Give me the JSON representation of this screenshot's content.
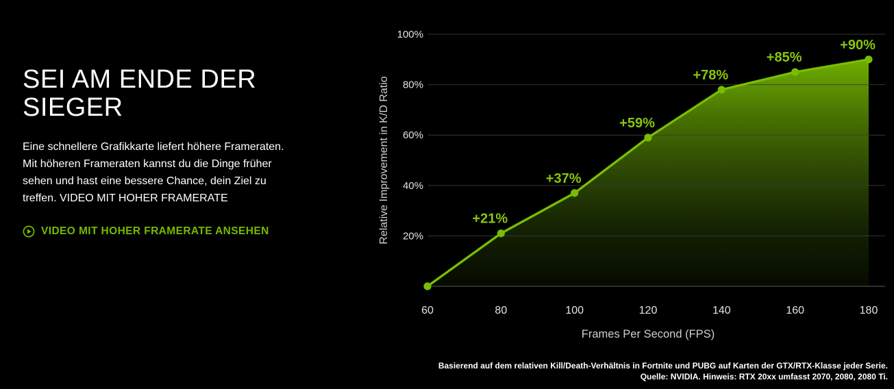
{
  "page": {
    "background": "#000000",
    "accent": "#76b900"
  },
  "hero": {
    "title_lines": [
      "SEI AM ENDE DER",
      "SIEGER"
    ],
    "body_lines": [
      "Eine schnellere Grafikkarte liefert höhere Frameraten.",
      "Mit höheren Frameraten kannst du die Dinge früher",
      "sehen und hast eine bessere Chance, dein Ziel zu",
      "treffen. VIDEO MIT HOHER FRAMERATE"
    ],
    "cta_label": "VIDEO MIT HOHER FRAMERATE ANSEHEN",
    "cta_icon": "play-circle-icon"
  },
  "chart_data": {
    "type": "area",
    "title": "",
    "x": [
      60,
      80,
      100,
      120,
      140,
      160,
      180
    ],
    "values": [
      0,
      21,
      37,
      59,
      78,
      85,
      90
    ],
    "point_labels": [
      "",
      "+21%",
      "+37%",
      "+59%",
      "+78%",
      "+85%",
      "+90%"
    ],
    "x_ticks": [
      "60",
      "80",
      "100",
      "120",
      "140",
      "160",
      "180"
    ],
    "y_ticks": [
      20,
      40,
      60,
      80,
      100
    ],
    "y_tick_suffix": "%",
    "xlabel": "Frames Per Second (FPS)",
    "ylabel": "Relative Improvement in K/D Ratio",
    "ylim": [
      0,
      100
    ],
    "grid": true,
    "legend": "none",
    "line_color": "#79bd02",
    "point_color": "#79bd02",
    "label_color": "#89c50f",
    "fill_gradient": [
      "#6fae00",
      "#477202",
      "#2c4604",
      "#142203",
      "#060a00"
    ],
    "gridline_color": "#3c3c3c",
    "baseline_color": "#5c5c5c",
    "tick_color": "#e3e3e3",
    "axis_label_color": "#cfcfcf"
  },
  "footnote": {
    "line1": "Basierend auf dem relativen Kill/Death-Verhältnis in Fortnite und PUBG auf Karten der GTX/RTX-Klasse jeder Serie.",
    "line2": "Quelle: NVIDIA. Hinweis: RTX 20xx umfasst 2070, 2080, 2080 Ti."
  }
}
